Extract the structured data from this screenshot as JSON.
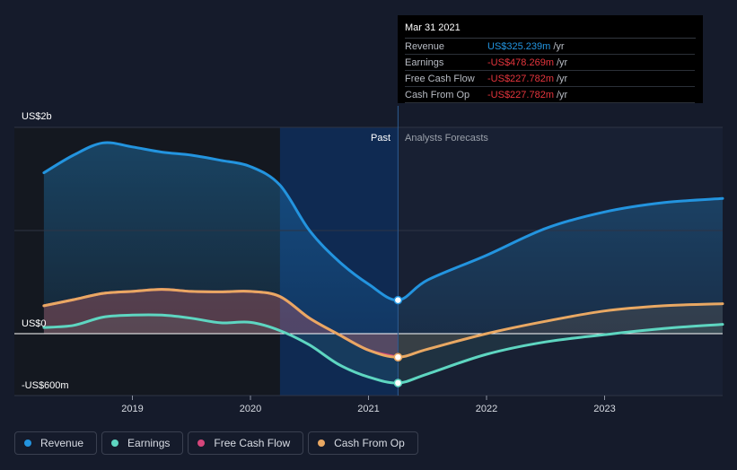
{
  "colors": {
    "background": "#151b2b",
    "revenue": "#2394df",
    "earnings": "#5ed6c1",
    "free_cash_flow": "#d6467b",
    "cash_from_op": "#e9a863",
    "past_band": "#0f2a52",
    "grid": "#2e3445",
    "zero_line": "#ffffff"
  },
  "tooltip": {
    "date": "Mar 31 2021",
    "rows": [
      {
        "name": "Revenue",
        "value": "US$325.239m",
        "unit": "/yr",
        "color": "#2394df"
      },
      {
        "name": "Earnings",
        "value": "-US$478.269m",
        "unit": "/yr",
        "color": "#e5353d"
      },
      {
        "name": "Free Cash Flow",
        "value": "-US$227.782m",
        "unit": "/yr",
        "color": "#e5353d"
      },
      {
        "name": "Cash From Op",
        "value": "-US$227.782m",
        "unit": "/yr",
        "color": "#e5353d"
      }
    ]
  },
  "legend": [
    {
      "label": "Revenue",
      "color": "#2394df",
      "icon": "revenue-dot-icon"
    },
    {
      "label": "Earnings",
      "color": "#5ed6c1",
      "icon": "earnings-dot-icon"
    },
    {
      "label": "Free Cash Flow",
      "color": "#d6467b",
      "icon": "free-cash-flow-dot-icon"
    },
    {
      "label": "Cash From Op",
      "color": "#e9a863",
      "icon": "cash-from-op-dot-icon"
    }
  ],
  "chart_data": {
    "type": "line",
    "title": "",
    "xlabel": "",
    "ylabel": "",
    "y_top_label": "US$2b",
    "y_zero_label": "US$0",
    "y_bottom_label": "-US$600m",
    "ylim": [
      -600,
      2000
    ],
    "xlim": [
      2018.0,
      2024.0
    ],
    "x_ticks": [
      2019,
      2020,
      2021,
      2022,
      2023
    ],
    "x_tick_labels": [
      "2019",
      "2020",
      "2021",
      "2022",
      "2023"
    ],
    "past_label": "Past",
    "forecast_label": "Analysts Forecasts",
    "past_band_start": 2020.25,
    "divider_x": 2021.25,
    "series": [
      {
        "name": "Revenue",
        "color": "#2394df",
        "past": [
          [
            2018.25,
            1560
          ],
          [
            2018.5,
            1730
          ],
          [
            2018.75,
            1850
          ],
          [
            2019.0,
            1810
          ],
          [
            2019.25,
            1760
          ],
          [
            2019.5,
            1730
          ],
          [
            2019.75,
            1680
          ],
          [
            2020.0,
            1620
          ],
          [
            2020.25,
            1440
          ],
          [
            2020.5,
            1000
          ],
          [
            2020.75,
            700
          ],
          [
            2021.0,
            480
          ],
          [
            2021.25,
            325
          ]
        ],
        "forecast": [
          [
            2021.25,
            325
          ],
          [
            2021.5,
            520
          ],
          [
            2022.0,
            760
          ],
          [
            2022.5,
            1020
          ],
          [
            2023.0,
            1180
          ],
          [
            2023.5,
            1270
          ],
          [
            2024.0,
            1310
          ]
        ],
        "marker": [
          2021.25,
          325
        ]
      },
      {
        "name": "Earnings",
        "color": "#5ed6c1",
        "past": [
          [
            2018.25,
            60
          ],
          [
            2018.5,
            80
          ],
          [
            2018.75,
            160
          ],
          [
            2019.0,
            180
          ],
          [
            2019.25,
            180
          ],
          [
            2019.5,
            150
          ],
          [
            2019.75,
            105
          ],
          [
            2020.0,
            110
          ],
          [
            2020.25,
            30
          ],
          [
            2020.5,
            -110
          ],
          [
            2020.75,
            -300
          ],
          [
            2021.0,
            -420
          ],
          [
            2021.25,
            -478
          ]
        ],
        "forecast": [
          [
            2021.25,
            -478
          ],
          [
            2021.5,
            -390
          ],
          [
            2022.0,
            -200
          ],
          [
            2022.5,
            -80
          ],
          [
            2023.0,
            -10
          ],
          [
            2023.5,
            50
          ],
          [
            2024.0,
            90
          ]
        ],
        "marker": [
          2021.25,
          -478
        ]
      },
      {
        "name": "Free Cash Flow",
        "color": "#d6467b",
        "past": [
          [
            2018.25,
            270
          ],
          [
            2018.5,
            330
          ],
          [
            2018.75,
            390
          ],
          [
            2019.0,
            410
          ],
          [
            2019.25,
            430
          ],
          [
            2019.5,
            410
          ],
          [
            2019.75,
            405
          ],
          [
            2020.0,
            410
          ],
          [
            2020.25,
            360
          ],
          [
            2020.5,
            150
          ],
          [
            2020.75,
            -10
          ],
          [
            2021.0,
            -160
          ],
          [
            2021.25,
            -228
          ]
        ],
        "forecast": [],
        "marker": [
          2021.25,
          -228
        ]
      },
      {
        "name": "Cash From Op",
        "color": "#e9a863",
        "past": [
          [
            2018.25,
            270
          ],
          [
            2018.5,
            330
          ],
          [
            2018.75,
            390
          ],
          [
            2019.0,
            410
          ],
          [
            2019.25,
            430
          ],
          [
            2019.5,
            410
          ],
          [
            2019.75,
            405
          ],
          [
            2020.0,
            410
          ],
          [
            2020.25,
            360
          ],
          [
            2020.5,
            150
          ],
          [
            2020.75,
            -10
          ],
          [
            2021.0,
            -160
          ],
          [
            2021.25,
            -228
          ]
        ],
        "forecast": [
          [
            2021.25,
            -228
          ],
          [
            2021.5,
            -150
          ],
          [
            2022.0,
            0
          ],
          [
            2022.5,
            120
          ],
          [
            2023.0,
            220
          ],
          [
            2023.5,
            270
          ],
          [
            2024.0,
            290
          ]
        ],
        "marker": [
          2021.25,
          -228
        ]
      }
    ]
  }
}
